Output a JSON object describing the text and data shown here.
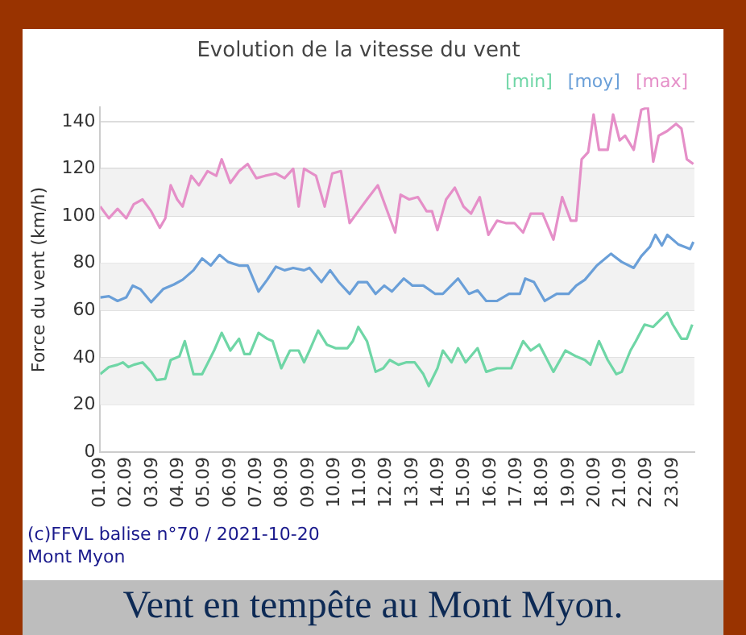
{
  "chart_data": {
    "type": "line",
    "title": "Evolution de la vitesse du vent",
    "ylabel": "Force du vent (km/h)",
    "xlim": [
      "--09-01",
      "--09-23T20:00"
    ],
    "xticks": [
      {
        "value": "--09-01",
        "label": "01.09"
      },
      {
        "value": "--09-02",
        "label": "02.09"
      },
      {
        "value": "--09-03",
        "label": "03.09"
      },
      {
        "value": "--09-04",
        "label": "04.09"
      },
      {
        "value": "--09-05",
        "label": "05.09"
      },
      {
        "value": "--09-06",
        "label": "06.09"
      },
      {
        "value": "--09-07",
        "label": "07.09"
      },
      {
        "value": "--09-08",
        "label": "08.09"
      },
      {
        "value": "--09-09",
        "label": "09.09"
      },
      {
        "value": "--09-10",
        "label": "10.09"
      },
      {
        "value": "--09-11",
        "label": "11.09"
      },
      {
        "value": "--09-12",
        "label": "12.09"
      },
      {
        "value": "--09-13",
        "label": "13.09"
      },
      {
        "value": "--09-14",
        "label": "14.09"
      },
      {
        "value": "--09-15",
        "label": "15.09"
      },
      {
        "value": "--09-16",
        "label": "16.09"
      },
      {
        "value": "--09-17",
        "label": "17.09"
      },
      {
        "value": "--09-18",
        "label": "18.09"
      },
      {
        "value": "--09-19",
        "label": "19.09"
      },
      {
        "value": "--09-20",
        "label": "20.09"
      },
      {
        "value": "--09-21",
        "label": "21.09"
      },
      {
        "value": "--09-22",
        "label": "22.09"
      },
      {
        "value": "--09-23",
        "label": "23.09"
      }
    ],
    "ylim": [
      0,
      146
    ],
    "yticks": [
      0,
      20,
      40,
      60,
      80,
      100,
      120,
      140
    ],
    "grid": "y",
    "legend": "top right",
    "marker": "none",
    "line_style": "solid",
    "series": [
      {
        "name": "[min]",
        "color": "#6fd6a6",
        "x": [
          "--09-01T00:00",
          "--09-01T08:00",
          "--09-01T16:00",
          "--09-01T21:00",
          "--09-02T02:00",
          "--09-02T07:00",
          "--09-02T15:00",
          "--09-02T23:00",
          "--09-03T04:00",
          "--09-03T12:00",
          "--09-03T17:00",
          "--09-04T01:00",
          "--09-04T06:00",
          "--09-04T14:00",
          "--09-04T22:00",
          "--09-05T09:00",
          "--09-05T16:00",
          "--09-06T00:00",
          "--09-06T08:00",
          "--09-06T13:00",
          "--09-06T18:00",
          "--09-07T02:00",
          "--09-07T10:00",
          "--09-07T15:00",
          "--09-07T23:00",
          "--09-08T07:00",
          "--09-08T15:00",
          "--09-08T20:00",
          "--09-09T01:00",
          "--09-09T09:00",
          "--09-09T17:00",
          "--09-10T01:00",
          "--09-10T12:00",
          "--09-10T17:00",
          "--09-10T22:00",
          "--09-11T06:00",
          "--09-11T14:00",
          "--09-11T21:00",
          "--09-12T03:00",
          "--09-12T11:00",
          "--09-12T18:00",
          "--09-13T02:00",
          "--09-13T10:00",
          "--09-13T15:00",
          "--09-13T23:00",
          "--09-14T04:00",
          "--09-14T12:00",
          "--09-14T18:00",
          "--09-15T01:00",
          "--09-15T12:00",
          "--09-15T20:00",
          "--09-16T06:00",
          "--09-16T19:00",
          "--09-17T06:00",
          "--09-17T13:00",
          "--09-17T21:00",
          "--09-18T10:00",
          "--09-18T21:00",
          "--09-19T07:00",
          "--09-19T15:00",
          "--09-19T20:00",
          "--09-20T04:00",
          "--09-20T12:00",
          "--09-20T20:00",
          "--09-21T01:00",
          "--09-21T09:00",
          "--09-21T14:00",
          "--09-21T22:00",
          "--09-22T06:00",
          "--09-22T19:00",
          "--09-23T00:00",
          "--09-23T08:00",
          "--09-23T13:00",
          "--09-23T18:00"
        ],
        "values": [
          33,
          36,
          37,
          38,
          36,
          37,
          38,
          34,
          30.5,
          31,
          39,
          40.5,
          47,
          33,
          33,
          43,
          50.5,
          43,
          48,
          41.5,
          41.5,
          50.5,
          48,
          47,
          35.5,
          43,
          43,
          38,
          43,
          51.5,
          45.5,
          44,
          44,
          47,
          53,
          47,
          34,
          35.5,
          39,
          37,
          38,
          38,
          33,
          28,
          35.5,
          43,
          38,
          44,
          38,
          44,
          34,
          35.5,
          35.5,
          47,
          43,
          45.5,
          34,
          43,
          40.5,
          39,
          37,
          47,
          39,
          33,
          34,
          43,
          47,
          54,
          53,
          59,
          54,
          48,
          48,
          54
        ]
      },
      {
        "name": "[moy]",
        "color": "#6a9fd8",
        "x": [
          "--09-01T00:00",
          "--09-01T08:00",
          "--09-01T16:00",
          "--09-02T00:00",
          "--09-02T06:00",
          "--09-02T13:00",
          "--09-02T23:00",
          "--09-03T10:00",
          "--09-03T20:00",
          "--09-04T04:00",
          "--09-04T14:00",
          "--09-04T22:00",
          "--09-05T06:00",
          "--09-05T14:00",
          "--09-05T22:00",
          "--09-06T08:00",
          "--09-06T16:00",
          "--09-07T02:00",
          "--09-07T10:00",
          "--09-07T18:00",
          "--09-08T02:00",
          "--09-08T10:00",
          "--09-08T20:00",
          "--09-09T01:00",
          "--09-09T12:00",
          "--09-09T20:00",
          "--09-10T04:00",
          "--09-10T14:00",
          "--09-10T22:00",
          "--09-11T06:00",
          "--09-11T14:00",
          "--09-11T22:00",
          "--09-12T05:00",
          "--09-12T16:00",
          "--09-13T00:00",
          "--09-13T10:00",
          "--09-13T21:00",
          "--09-14T04:00",
          "--09-14T18:00",
          "--09-15T04:00",
          "--09-15T12:00",
          "--09-15T20:00",
          "--09-16T06:00",
          "--09-16T17:00",
          "--09-17T03:00",
          "--09-17T08:00",
          "--09-17T16:00",
          "--09-18T02:00",
          "--09-18T13:00",
          "--09-19T00:00",
          "--09-19T07:00",
          "--09-19T15:00",
          "--09-20T02:00",
          "--09-20T15:00",
          "--09-21T01:00",
          "--09-21T12:00",
          "--09-21T19:00",
          "--09-22T03:00",
          "--09-22T08:00",
          "--09-22T14:00",
          "--09-22T19:00",
          "--09-23T05:00",
          "--09-23T16:00",
          "--09-23T19:00"
        ],
        "values": [
          65.5,
          66,
          64,
          65.5,
          70.5,
          69,
          63.5,
          69,
          71,
          73,
          77,
          82,
          79,
          83.5,
          80.5,
          79,
          79,
          68,
          73,
          78.5,
          77,
          78,
          77,
          78,
          72,
          77,
          72,
          67,
          72,
          72,
          67,
          70.5,
          68,
          73.5,
          70.5,
          70.5,
          67,
          67,
          73.5,
          67,
          68.5,
          64,
          64,
          67,
          67,
          73.5,
          72,
          64,
          67,
          67,
          70.5,
          73,
          79,
          84,
          80.5,
          78,
          83,
          87,
          92,
          87.5,
          92,
          88,
          86,
          89
        ]
      },
      {
        "name": "[max]",
        "color": "#e58fc8",
        "x": [
          "--09-01T00:00",
          "--09-01T08:00",
          "--09-01T16:00",
          "--09-02T00:00",
          "--09-02T07:00",
          "--09-02T15:00",
          "--09-02T23:00",
          "--09-03T07:00",
          "--09-03T12:00",
          "--09-03T17:00",
          "--09-03T23:00",
          "--09-04T04:00",
          "--09-04T12:00",
          "--09-04T19:00",
          "--09-05T03:00",
          "--09-05T11:00",
          "--09-05T16:00",
          "--09-06T00:00",
          "--09-06T08:00",
          "--09-06T16:00",
          "--09-07T00:00",
          "--09-07T08:00",
          "--09-07T18:00",
          "--09-08T02:00",
          "--09-08T10:00",
          "--09-08T15:00",
          "--09-08T20:00",
          "--09-09T07:00",
          "--09-09T15:00",
          "--09-09T22:00",
          "--09-10T06:00",
          "--09-10T14:00",
          "--09-10T22:00",
          "--09-11T06:00",
          "--09-11T16:00",
          "--09-12T00:00",
          "--09-12T08:00",
          "--09-12T13:00",
          "--09-12T21:00",
          "--09-13T05:00",
          "--09-13T13:00",
          "--09-13T18:00",
          "--09-13T23:00",
          "--09-14T07:00",
          "--09-14T15:00",
          "--09-14T23:00",
          "--09-15T06:00",
          "--09-15T14:00",
          "--09-15T22:00",
          "--09-16T06:00",
          "--09-16T14:00",
          "--09-16T22:00",
          "--09-17T06:00",
          "--09-17T13:00",
          "--09-18T00:00",
          "--09-18T10:00",
          "--09-18T18:00",
          "--09-19T02:00",
          "--09-19T07:00",
          "--09-19T12:00",
          "--09-19T18:00",
          "--09-19T23:00",
          "--09-20T04:00",
          "--09-20T12:00",
          "--09-20T17:00",
          "--09-20T23:00",
          "--09-21T04:00",
          "--09-21T12:00",
          "--09-21T19:00",
          "--09-22T01:00",
          "--09-22T06:00",
          "--09-22T11:00",
          "--09-22T19:00",
          "--09-23T03:00",
          "--09-23T08:00",
          "--09-23T13:00",
          "--09-23T19:00"
        ],
        "values": [
          104,
          99,
          103,
          99,
          105,
          107,
          102,
          95,
          99,
          113,
          107,
          104,
          117,
          113,
          119,
          117,
          124,
          114,
          119,
          122,
          116,
          117,
          118,
          116,
          120,
          104,
          120,
          117,
          104,
          118,
          119,
          97,
          102,
          107,
          113,
          103,
          93,
          109,
          107,
          108,
          102,
          102,
          94,
          107,
          112,
          104,
          101,
          108,
          92,
          98,
          97,
          97,
          93,
          101,
          101,
          90,
          108,
          98,
          98,
          124,
          127,
          143,
          128,
          128,
          143,
          132,
          134,
          128,
          145,
          146,
          123,
          134,
          136,
          139,
          137,
          124,
          122
        ]
      }
    ],
    "annotations": [
      "(c)FFVL balise n°70 / 2021-10-20",
      "Mont Myon",
      "Vent en tempête au Mont Myon."
    ]
  }
}
